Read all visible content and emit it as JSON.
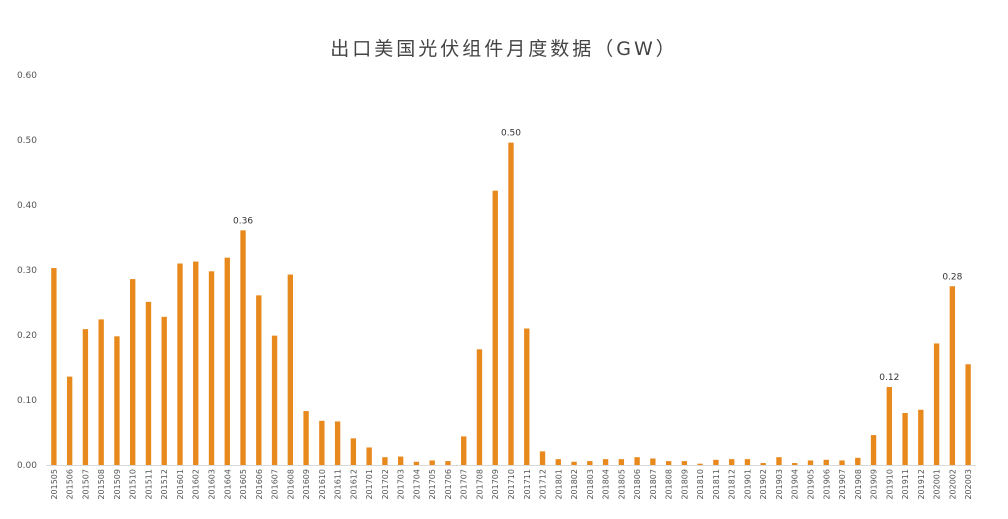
{
  "chart_data": {
    "type": "bar",
    "title": "出口美国光伏组件月度数据（GW）",
    "xlabel": "",
    "ylabel": "",
    "ylim": [
      0,
      0.6
    ],
    "yticks": [
      "0.00",
      "0.10",
      "0.20",
      "0.30",
      "0.40",
      "0.50",
      "0.60"
    ],
    "grid": false,
    "legend": "none",
    "bar_color": "#E8891D",
    "categories": [
      "201505",
      "201506",
      "201507",
      "201508",
      "201509",
      "201510",
      "201511",
      "201512",
      "201601",
      "201602",
      "201603",
      "201604",
      "201605",
      "201606",
      "201607",
      "201608",
      "201609",
      "201610",
      "201611",
      "201612",
      "201701",
      "201702",
      "201703",
      "201704",
      "201705",
      "201706",
      "201707",
      "201708",
      "201709",
      "201710",
      "201711",
      "201712",
      "201801",
      "201802",
      "201803",
      "201804",
      "201805",
      "201806",
      "201807",
      "201808",
      "201809",
      "201810",
      "201811",
      "201812",
      "201901",
      "201902",
      "201903",
      "201904",
      "201905",
      "201906",
      "201907",
      "201908",
      "201909",
      "201910",
      "201911",
      "201912",
      "202001",
      "202002",
      "202003"
    ],
    "values": [
      0.303,
      0.136,
      0.209,
      0.224,
      0.198,
      0.286,
      0.251,
      0.228,
      0.31,
      0.313,
      0.298,
      0.319,
      0.361,
      0.261,
      0.199,
      0.293,
      0.083,
      0.068,
      0.067,
      0.041,
      0.027,
      0.012,
      0.013,
      0.005,
      0.007,
      0.006,
      0.044,
      0.178,
      0.422,
      0.496,
      0.21,
      0.021,
      0.009,
      0.005,
      0.006,
      0.009,
      0.009,
      0.012,
      0.01,
      0.006,
      0.006,
      0.002,
      0.008,
      0.009,
      0.009,
      0.003,
      0.012,
      0.003,
      0.007,
      0.008,
      0.007,
      0.011,
      0.046,
      0.12,
      0.08,
      0.085,
      0.187,
      0.275,
      0.155
    ],
    "data_labels": [
      {
        "index": 12,
        "text": "0.36"
      },
      {
        "index": 29,
        "text": "0.50"
      },
      {
        "index": 53,
        "text": "0.12"
      },
      {
        "index": 57,
        "text": "0.28"
      }
    ]
  }
}
